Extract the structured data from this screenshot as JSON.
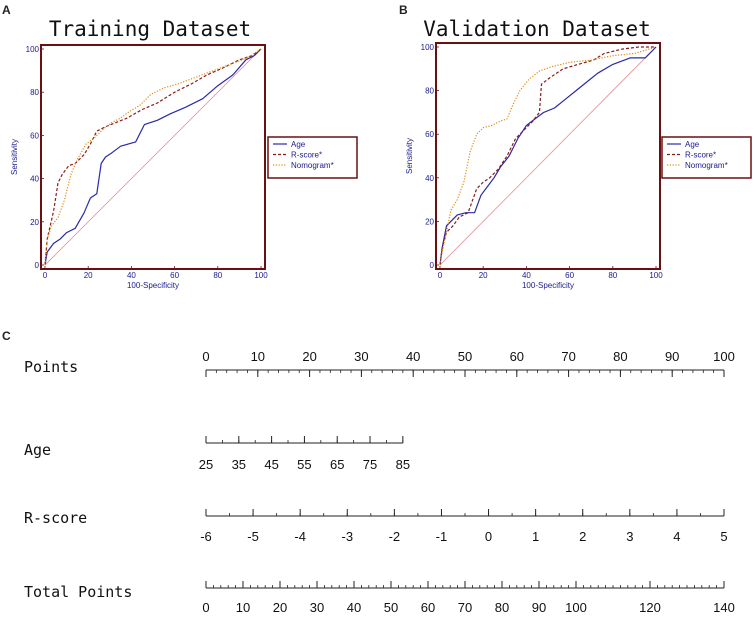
{
  "panel_letters": {
    "a": "A",
    "b": "B",
    "c": "C"
  },
  "chart_data": [
    {
      "type": "line",
      "panel": "A",
      "title": "Training Dataset",
      "xlabel": "100-Specificity",
      "ylabel": "Sensitivity",
      "xlim": [
        0,
        100
      ],
      "ylim": [
        0,
        100
      ],
      "x_ticks": [
        "0",
        "20",
        "40",
        "60",
        "80",
        "100"
      ],
      "y_ticks": [
        "0",
        "20",
        "40",
        "60",
        "80",
        "100"
      ],
      "legend_position": "right",
      "series": [
        {
          "name": "Age",
          "color": "#2a2aa8",
          "dash": "solid",
          "points": [
            [
              0,
              0
            ],
            [
              1,
              6
            ],
            [
              4,
              10
            ],
            [
              7,
              12
            ],
            [
              10,
              15
            ],
            [
              14,
              17
            ],
            [
              18,
              24
            ],
            [
              21,
              31
            ],
            [
              24,
              33
            ],
            [
              26,
              47
            ],
            [
              28,
              50
            ],
            [
              31,
              52
            ],
            [
              35,
              55
            ],
            [
              42,
              57
            ],
            [
              46,
              65
            ],
            [
              52,
              67
            ],
            [
              58,
              70
            ],
            [
              65,
              73
            ],
            [
              73,
              77
            ],
            [
              80,
              83
            ],
            [
              87,
              88
            ],
            [
              93,
              95
            ],
            [
              97,
              97
            ],
            [
              100,
              100
            ]
          ]
        },
        {
          "name": "R-score*",
          "color": "#8b1a1a",
          "dash": "dashed",
          "points": [
            [
              0,
              0
            ],
            [
              1,
              12
            ],
            [
              4,
              25
            ],
            [
              6,
              38
            ],
            [
              8,
              42
            ],
            [
              11,
              46
            ],
            [
              14,
              47
            ],
            [
              18,
              51
            ],
            [
              21,
              56
            ],
            [
              24,
              62
            ],
            [
              28,
              64
            ],
            [
              33,
              66
            ],
            [
              38,
              68
            ],
            [
              45,
              72
            ],
            [
              52,
              75
            ],
            [
              60,
              80
            ],
            [
              68,
              84
            ],
            [
              75,
              88
            ],
            [
              82,
              91
            ],
            [
              90,
              95
            ],
            [
              96,
              97
            ],
            [
              100,
              100
            ]
          ]
        },
        {
          "name": "Nomogram*",
          "color": "#e08a10",
          "dash": "dotted",
          "points": [
            [
              0,
              0
            ],
            [
              1,
              12
            ],
            [
              3,
              18
            ],
            [
              6,
              22
            ],
            [
              9,
              30
            ],
            [
              12,
              42
            ],
            [
              15,
              49
            ],
            [
              19,
              56
            ],
            [
              23,
              59
            ],
            [
              27,
              63
            ],
            [
              31,
              66
            ],
            [
              35,
              68
            ],
            [
              39,
              71
            ],
            [
              44,
              74
            ],
            [
              49,
              79
            ],
            [
              55,
              82
            ],
            [
              62,
              84
            ],
            [
              70,
              87
            ],
            [
              78,
              90
            ],
            [
              86,
              93
            ],
            [
              94,
              96
            ],
            [
              100,
              100
            ]
          ]
        }
      ],
      "diagonal": true
    },
    {
      "type": "line",
      "panel": "B",
      "title": "Validation Dataset",
      "xlabel": "100-Specificity",
      "ylabel": "Sensitivity",
      "xlim": [
        0,
        100
      ],
      "ylim": [
        0,
        100
      ],
      "x_ticks": [
        "0",
        "20",
        "40",
        "60",
        "80",
        "100"
      ],
      "y_ticks": [
        "0",
        "20",
        "40",
        "60",
        "80",
        "100"
      ],
      "legend_position": "right",
      "series": [
        {
          "name": "Age",
          "color": "#2a2aa8",
          "dash": "solid",
          "points": [
            [
              0,
              0
            ],
            [
              1,
              8
            ],
            [
              3,
              18
            ],
            [
              5,
              20
            ],
            [
              8,
              23
            ],
            [
              12,
              24
            ],
            [
              16,
              24
            ],
            [
              19,
              32
            ],
            [
              22,
              36
            ],
            [
              25,
              40
            ],
            [
              28,
              45
            ],
            [
              32,
              50
            ],
            [
              36,
              58
            ],
            [
              40,
              64
            ],
            [
              44,
              67
            ],
            [
              48,
              70
            ],
            [
              53,
              72
            ],
            [
              58,
              76
            ],
            [
              63,
              80
            ],
            [
              68,
              84
            ],
            [
              73,
              88
            ],
            [
              80,
              92
            ],
            [
              88,
              95
            ],
            [
              95,
              95
            ],
            [
              100,
              100
            ]
          ]
        },
        {
          "name": "R-score*",
          "color": "#8b1a1a",
          "dash": "dashed",
          "points": [
            [
              0,
              0
            ],
            [
              1,
              8
            ],
            [
              3,
              15
            ],
            [
              6,
              18
            ],
            [
              9,
              22
            ],
            [
              13,
              24
            ],
            [
              17,
              35
            ],
            [
              20,
              38
            ],
            [
              23,
              40
            ],
            [
              27,
              44
            ],
            [
              31,
              50
            ],
            [
              35,
              58
            ],
            [
              39,
              62
            ],
            [
              43,
              66
            ],
            [
              46,
              70
            ],
            [
              47,
              83
            ],
            [
              51,
              86
            ],
            [
              57,
              90
            ],
            [
              64,
              92
            ],
            [
              71,
              94
            ],
            [
              76,
              97
            ],
            [
              84,
              99
            ],
            [
              92,
              100
            ],
            [
              100,
              100
            ]
          ]
        },
        {
          "name": "Nomogram*",
          "color": "#e08a10",
          "dash": "dotted",
          "points": [
            [
              0,
              0
            ],
            [
              1,
              6
            ],
            [
              3,
              15
            ],
            [
              5,
              25
            ],
            [
              8,
              30
            ],
            [
              11,
              38
            ],
            [
              14,
              52
            ],
            [
              17,
              60
            ],
            [
              20,
              63
            ],
            [
              24,
              64
            ],
            [
              28,
              66
            ],
            [
              31,
              67
            ],
            [
              34,
              74
            ],
            [
              37,
              80
            ],
            [
              41,
              85
            ],
            [
              46,
              89
            ],
            [
              52,
              91
            ],
            [
              60,
              93
            ],
            [
              70,
              94
            ],
            [
              80,
              96
            ],
            [
              90,
              97
            ],
            [
              100,
              100
            ]
          ]
        }
      ],
      "diagonal": true
    },
    {
      "type": "nomogram",
      "panel": "C",
      "scales": [
        {
          "label": "Points",
          "name": "points",
          "min": 0,
          "max": 100,
          "labels": [
            "0",
            "10",
            "20",
            "30",
            "40",
            "50",
            "60",
            "70",
            "80",
            "90",
            "100"
          ],
          "label_values": [
            0,
            10,
            20,
            30,
            40,
            50,
            60,
            70,
            80,
            90,
            100
          ],
          "minor_step": 2
        },
        {
          "label": "Age",
          "name": "age",
          "min": 25,
          "max": 85,
          "labels": [
            "25",
            "35",
            "45",
            "55",
            "65",
            "75",
            "85"
          ],
          "label_values": [
            25,
            35,
            45,
            55,
            65,
            75,
            85
          ],
          "minor_step": 5,
          "points_at_max": 38
        },
        {
          "label": "R-score",
          "name": "r-score",
          "min": -6,
          "max": 5,
          "labels": [
            "-6",
            "-5",
            "-4",
            "-3",
            "-2",
            "-1",
            "0",
            "1",
            "2",
            "3",
            "4",
            "5"
          ],
          "label_values": [
            -6,
            -5,
            -4,
            -3,
            -2,
            -1,
            0,
            1,
            2,
            3,
            4,
            5
          ],
          "minor_step": 0.5
        },
        {
          "label": "Total Points",
          "name": "total-points",
          "min": 0,
          "max": 140,
          "labels": [
            "0",
            "10",
            "20",
            "30",
            "40",
            "50",
            "60",
            "70",
            "80",
            "90",
            "100",
            "120",
            "140"
          ],
          "label_values": [
            0,
            10,
            20,
            30,
            40,
            50,
            60,
            70,
            80,
            90,
            100,
            120,
            140
          ],
          "minor_step": 2
        }
      ]
    }
  ]
}
